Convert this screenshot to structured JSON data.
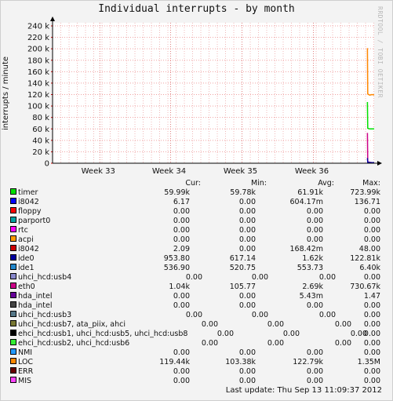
{
  "watermark": "RRDTOOL / TOBI OETIKER",
  "legend_headers": {
    "cur": "Cur:",
    "min": "Min:",
    "avg": "Avg:",
    "max": "Max:"
  },
  "legend": [
    {
      "name": "timer",
      "color": "#00e000",
      "cur": "59.99k",
      "min": "59.78k",
      "avg": "61.91k",
      "max": "723.99k"
    },
    {
      "name": "i8042",
      "color": "#0000ff",
      "cur": "6.17",
      "min": "0.00",
      "avg": "604.17m",
      "max": "136.71"
    },
    {
      "name": "floppy",
      "color": "#ff0000",
      "cur": "0.00",
      "min": "0.00",
      "avg": "0.00",
      "max": "0.00"
    },
    {
      "name": "parport0",
      "color": "#00a0a0",
      "cur": "0.00",
      "min": "0.00",
      "avg": "0.00",
      "max": "0.00"
    },
    {
      "name": "rtc",
      "color": "#ff00ff",
      "cur": "0.00",
      "min": "0.00",
      "avg": "0.00",
      "max": "0.00"
    },
    {
      "name": "acpi",
      "color": "#ff9900",
      "cur": "0.00",
      "min": "0.00",
      "avg": "0.00",
      "max": "0.00"
    },
    {
      "name": "i8042",
      "color": "#cc0000",
      "cur": "2.09",
      "min": "0.00",
      "avg": "168.42m",
      "max": "48.00"
    },
    {
      "name": "ide0",
      "color": "#0000a0",
      "cur": "953.80",
      "min": "617.14",
      "avg": "1.62k",
      "max": "122.81k"
    },
    {
      "name": "ide1",
      "color": "#2288cc",
      "cur": "536.90",
      "min": "520.75",
      "avg": "553.73",
      "max": "6.40k"
    },
    {
      "name": "uhci_hcd:usb4",
      "color": "#8888cc",
      "cur": "0.00",
      "min": "0.00",
      "avg": "0.00",
      "max": "0.00"
    },
    {
      "name": "eth0",
      "color": "#cc0088",
      "cur": "1.04k",
      "min": "105.77",
      "avg": "2.69k",
      "max": "730.67k"
    },
    {
      "name": "hda_intel",
      "color": "#660099",
      "cur": "0.00",
      "min": "0.00",
      "avg": "5.43m",
      "max": "1.47"
    },
    {
      "name": "hda_intel",
      "color": "#444444",
      "cur": "0.00",
      "min": "0.00",
      "avg": "0.00",
      "max": "0.00"
    },
    {
      "name": "uhci_hcd:usb3",
      "color": "#557788",
      "cur": "0.00",
      "min": "0.00",
      "avg": "0.00",
      "max": "0.00"
    },
    {
      "name": "uhci_hcd:usb7, ata_piix, ahci",
      "color": "#777733",
      "cur": "0.00",
      "min": "0.00",
      "avg": "0.00",
      "max": "0.00"
    },
    {
      "name": "ehci_hcd:usb1, uhci_hcd:usb5, uhci_hcd:usb8",
      "color": "#000000",
      "cur": "0.00",
      "min": "0.00",
      "avg": "0.00",
      "max": "0.00"
    },
    {
      "name": "ehci_hcd:usb2, uhci_hcd:usb6",
      "color": "#33ee33",
      "cur": "0.00",
      "min": "0.00",
      "avg": "0.00",
      "max": "0.00"
    },
    {
      "name": "NMI",
      "color": "#2299ff",
      "cur": "0.00",
      "min": "0.00",
      "avg": "0.00",
      "max": "0.00"
    },
    {
      "name": "LOC",
      "color": "#ff8800",
      "cur": "119.44k",
      "min": "103.38k",
      "avg": "122.79k",
      "max": "1.35M"
    },
    {
      "name": "ERR",
      "color": "#660000",
      "cur": "0.00",
      "min": "0.00",
      "avg": "0.00",
      "max": "0.00"
    },
    {
      "name": "MIS",
      "color": "#ff44ff",
      "cur": "0.00",
      "min": "0.00",
      "avg": "0.00",
      "max": "0.00"
    }
  ],
  "footer": "Last update: Thu Sep 13 11:09:37 2012",
  "chart_data": {
    "type": "line",
    "title": "Individual interrupts - by month",
    "ylabel": "interrupts / minute",
    "ylim": [
      0,
      240000
    ],
    "yticks": [
      0,
      20000,
      40000,
      60000,
      80000,
      100000,
      120000,
      140000,
      160000,
      180000,
      200000,
      220000,
      240000
    ],
    "ytick_labels": [
      "0",
      "20 k",
      "40 k",
      "60 k",
      "80 k",
      "100 k",
      "120 k",
      "140 k",
      "160 k",
      "180 k",
      "200 k",
      "220 k",
      "240 k"
    ],
    "xlim": [
      0,
      100
    ],
    "xticks": [
      {
        "x": 14.7,
        "label": "Week 33"
      },
      {
        "x": 36.7,
        "label": "Week 34"
      },
      {
        "x": 58.9,
        "label": "Week 35"
      },
      {
        "x": 81.1,
        "label": "Week 36"
      }
    ],
    "grid": true,
    "series": [
      {
        "name": "LOC",
        "color": "#ff8800",
        "x": [
          97.9,
          98.0,
          98.6,
          99.3,
          100
        ],
        "y": [
          201000,
          121000,
          119000,
          120000,
          119500
        ]
      },
      {
        "name": "timer",
        "color": "#00e000",
        "x": [
          97.9,
          98.0,
          98.6,
          99.3,
          100
        ],
        "y": [
          107000,
          61000,
          60000,
          60000,
          60000
        ]
      },
      {
        "name": "eth0",
        "color": "#cc0088",
        "x": [
          97.9,
          98.0,
          98.6,
          99.3,
          100
        ],
        "y": [
          53000,
          2500,
          1500,
          1000,
          1000
        ]
      },
      {
        "name": "ide0",
        "color": "#0000a0",
        "x": [
          97.9,
          98.0,
          99.0,
          100
        ],
        "y": [
          9000,
          1500,
          1000,
          950
        ]
      }
    ]
  }
}
